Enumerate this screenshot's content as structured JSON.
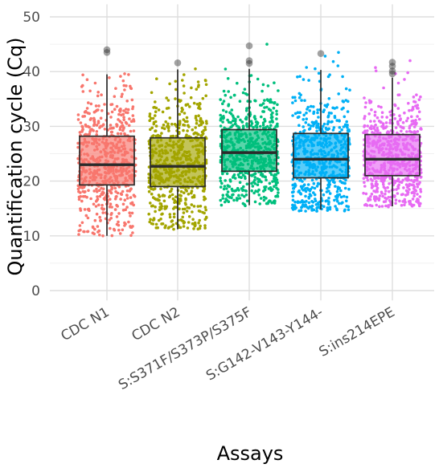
{
  "chart_data": {
    "type": "boxplot",
    "xlabel": "Assays",
    "ylabel": "Quantification cycle (Cq)",
    "ylim": [
      0,
      50
    ],
    "yticks": [
      0,
      10,
      20,
      30,
      40,
      50
    ],
    "grid": true,
    "legend": "none",
    "categories": [
      "CDC N1",
      "CDC N2",
      "S:S371F/S373P/S375F",
      "S:G142-V143-Y144-",
      "S:ins214EPE"
    ],
    "series": [
      {
        "category": "CDC N1",
        "color": "#F8766D",
        "q1": 19.3,
        "median": 23.0,
        "q3": 28.2,
        "whisker_low": 10.0,
        "whisker_high": 39.5,
        "jitter_min": 10.0,
        "jitter_max": 39.6,
        "outliers": [
          43.5,
          44.0
        ]
      },
      {
        "category": "CDC N2",
        "color": "#A3A500",
        "q1": 19.0,
        "median": 22.7,
        "q3": 27.9,
        "whisker_low": 11.2,
        "whisker_high": 40.4,
        "jitter_min": 11.2,
        "jitter_max": 40.5,
        "outliers": [
          41.6
        ]
      },
      {
        "category": "S:S371F/S373P/S375F",
        "color": "#00BF7D",
        "q1": 21.8,
        "median": 25.2,
        "q3": 29.4,
        "whisker_low": 15.6,
        "whisker_high": 40.5,
        "jitter_min": 15.5,
        "jitter_max": 45.0,
        "outliers": [
          41.5,
          42.0,
          44.7
        ]
      },
      {
        "category": "S:G142-V143-Y144-",
        "color": "#00B0F6",
        "q1": 20.6,
        "median": 24.0,
        "q3": 28.7,
        "whisker_low": 14.8,
        "whisker_high": 40.3,
        "jitter_min": 14.5,
        "jitter_max": 43.5,
        "outliers": [
          43.3
        ]
      },
      {
        "category": "S:ins214EPE",
        "color": "#E76BF3",
        "q1": 21.0,
        "median": 24.0,
        "q3": 28.5,
        "whisker_low": 15.4,
        "whisker_high": 38.9,
        "jitter_min": 15.3,
        "jitter_max": 42.0,
        "outliers": [
          39.6,
          40.1,
          41.0,
          41.7
        ]
      }
    ]
  }
}
